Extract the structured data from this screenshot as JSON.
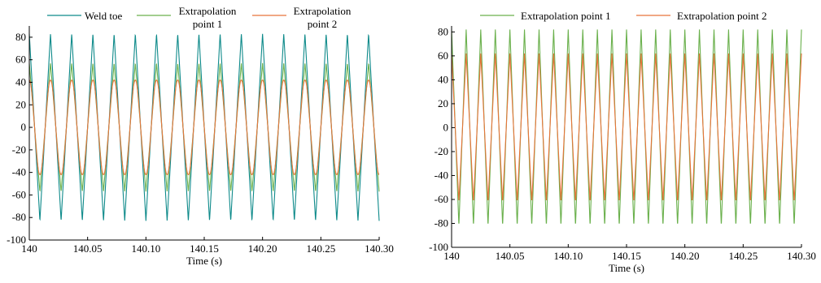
{
  "chart_data": [
    {
      "type": "line",
      "title": "",
      "xlabel": "Time (s)",
      "ylabel": "",
      "xlim": [
        140,
        140.3
      ],
      "ylim": [
        -100,
        90
      ],
      "x_ticks": [
        140,
        140.05,
        140.1,
        140.15,
        140.2,
        140.25,
        140.3
      ],
      "x_tick_labels": [
        "140",
        "140.05",
        "140.10",
        "140.15",
        "140.20",
        "140.25",
        "140.30"
      ],
      "y_ticks": [
        -100,
        -80,
        -60,
        -40,
        -20,
        0,
        20,
        40,
        60,
        80
      ],
      "y_tick_labels": [
        "-100",
        "-80",
        "-60",
        "-40",
        "-20",
        "0",
        "20",
        "40",
        "60",
        "80"
      ],
      "grid": false,
      "legend_position": "top",
      "frequency_hz": 55,
      "series": [
        {
          "name": "Weld toe",
          "legend_lines": [
            "Weld toe"
          ],
          "color": "#0e8a8a",
          "amplitude": 83,
          "wave": "triangle"
        },
        {
          "name": "Extrapolation point 1",
          "legend_lines": [
            "Extrapolation",
            "point 1"
          ],
          "color": "#6ab04c",
          "amplitude": 57,
          "wave": "triangle"
        },
        {
          "name": "Extrapolation point 2",
          "legend_lines": [
            "Extrapolation",
            "point 2"
          ],
          "color": "#e8743b",
          "amplitude": 42,
          "wave": "sine"
        }
      ]
    },
    {
      "type": "line",
      "title": "",
      "xlabel": "Time (s)",
      "ylabel": "",
      "xlim": [
        140,
        140.3
      ],
      "ylim": [
        -100,
        85
      ],
      "x_ticks": [
        140,
        140.05,
        140.1,
        140.15,
        140.2,
        140.25,
        140.3
      ],
      "x_tick_labels": [
        "140",
        "140.05",
        "140.10",
        "140.15",
        "140.20",
        "140.25",
        "140.30"
      ],
      "y_ticks": [
        -100,
        -80,
        -60,
        -40,
        -20,
        0,
        20,
        40,
        60,
        80
      ],
      "y_tick_labels": [
        "-100",
        "-80",
        "-60",
        "-40",
        "-20",
        "0",
        "20",
        "40",
        "60",
        "80"
      ],
      "grid": false,
      "legend_position": "top",
      "frequency_hz": 80,
      "series": [
        {
          "name": "Extrapolation point 1",
          "legend_lines": [
            "Extrapolation point 1"
          ],
          "color": "#6ab04c",
          "amplitude": 82,
          "wave": "triangle"
        },
        {
          "name": "Extrapolation point 2",
          "legend_lines": [
            "Extrapolation point 2"
          ],
          "color": "#e8743b",
          "amplitude": 62,
          "wave": "triangle"
        }
      ]
    }
  ]
}
